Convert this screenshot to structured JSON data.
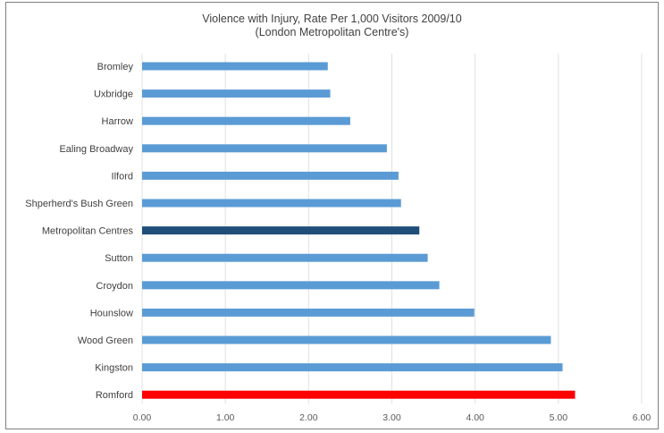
{
  "chart_data": {
    "type": "bar",
    "orientation": "horizontal",
    "title": "Violence with Injury, Rate Per 1,000 Visitors 2009/10",
    "subtitle": "(London Metropolitan Centre's)",
    "xlabel": "",
    "ylabel": "",
    "categories": [
      "Bromley",
      "Uxbridge",
      "Harrow",
      "Ealing Broadway",
      "Ilford",
      "Shperherd's Bush Green",
      "Metropolitan Centres",
      "Sutton",
      "Croydon",
      "Hounslow",
      "Wood Green",
      "Kingston",
      "Romford"
    ],
    "values": [
      2.23,
      2.26,
      2.5,
      2.94,
      3.08,
      3.11,
      3.33,
      3.43,
      3.57,
      3.99,
      4.91,
      5.05,
      5.2
    ],
    "bar_colors": [
      "#5b9bd5",
      "#5b9bd5",
      "#5b9bd5",
      "#5b9bd5",
      "#5b9bd5",
      "#5b9bd5",
      "#1f4e79",
      "#5b9bd5",
      "#5b9bd5",
      "#5b9bd5",
      "#5b9bd5",
      "#5b9bd5",
      "#ff0000"
    ],
    "xlim": [
      0,
      6
    ],
    "x_ticks": [
      "0.00",
      "1.00",
      "2.00",
      "3.00",
      "4.00",
      "5.00",
      "6.00"
    ],
    "grid": true,
    "legend": false
  }
}
